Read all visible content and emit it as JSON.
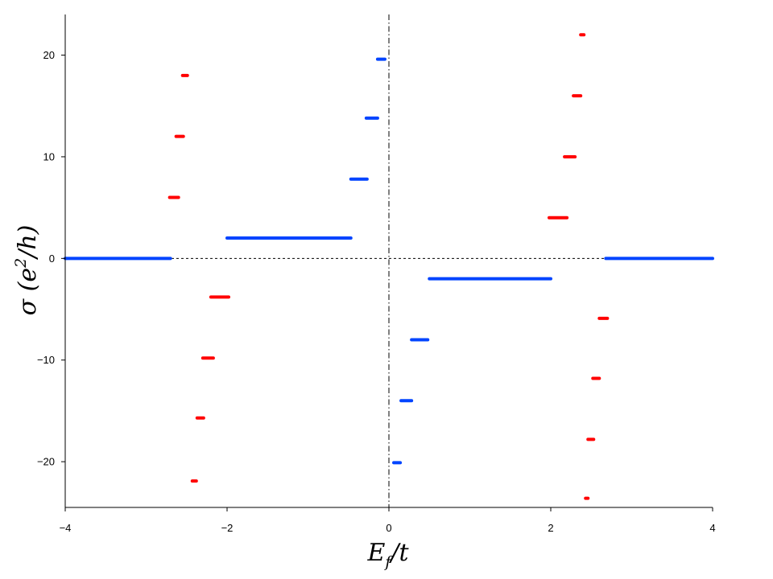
{
  "chart_data": {
    "type": "scatter",
    "title": "",
    "xlabel": "E_f / t",
    "ylabel": "σ (e² / h)",
    "xlim": [
      -4,
      4
    ],
    "ylim": [
      -24.5,
      24
    ],
    "xticks": [
      -4,
      -2,
      0,
      2,
      4
    ],
    "yticks": [
      -20,
      -10,
      0,
      10,
      20
    ],
    "tick_labels": {
      "x": [
        "−4",
        "−2",
        "0",
        "2",
        "4"
      ],
      "y": [
        "−20",
        "−10",
        "0",
        "10",
        "20"
      ]
    },
    "reference_lines": [
      {
        "orientation": "horizontal",
        "value": 0,
        "style": "dashed"
      },
      {
        "orientation": "vertical",
        "value": 0,
        "style": "dash-dot"
      }
    ],
    "colors": {
      "blue": "#0044ff",
      "red": "#ff0000",
      "axis": "#000000"
    },
    "series": [
      {
        "color": "blue",
        "segments": [
          {
            "x": [
              -4.0,
              -2.7
            ],
            "y": 0
          },
          {
            "x": [
              -2.0,
              -0.47
            ],
            "y": 2
          },
          {
            "x": [
              -0.47,
              -0.27
            ],
            "y": 7.8
          },
          {
            "x": [
              -0.28,
              -0.14
            ],
            "y": 13.8
          },
          {
            "x": [
              -0.14,
              -0.05
            ],
            "y": 19.6
          },
          {
            "x": [
              0.5,
              2.0
            ],
            "y": -2
          },
          {
            "x": [
              0.28,
              0.48
            ],
            "y": -8
          },
          {
            "x": [
              0.15,
              0.28
            ],
            "y": -14
          },
          {
            "x": [
              0.06,
              0.14
            ],
            "y": -20.1
          },
          {
            "x": [
              2.68,
              4.0
            ],
            "y": 0
          }
        ]
      },
      {
        "color": "red",
        "segments": [
          {
            "x": [
              -2.55,
              -2.49
            ],
            "y": 18
          },
          {
            "x": [
              -2.63,
              -2.54
            ],
            "y": 12
          },
          {
            "x": [
              -2.71,
              -2.6
            ],
            "y": 6
          },
          {
            "x": [
              -2.2,
              -1.98
            ],
            "y": -3.8
          },
          {
            "x": [
              -2.3,
              -2.17
            ],
            "y": -9.8
          },
          {
            "x": [
              -2.37,
              -2.29
            ],
            "y": -15.7
          },
          {
            "x": [
              -2.43,
              -2.38
            ],
            "y": -21.9
          },
          {
            "x": [
              2.37,
              2.41
            ],
            "y": 22
          },
          {
            "x": [
              2.28,
              2.37
            ],
            "y": 16
          },
          {
            "x": [
              2.17,
              2.3
            ],
            "y": 10
          },
          {
            "x": [
              1.98,
              2.2
            ],
            "y": 4
          },
          {
            "x": [
              2.6,
              2.7
            ],
            "y": -5.9
          },
          {
            "x": [
              2.52,
              2.6
            ],
            "y": -11.8
          },
          {
            "x": [
              2.46,
              2.53
            ],
            "y": -17.8
          },
          {
            "x": [
              2.43,
              2.46
            ],
            "y": -23.6
          }
        ]
      }
    ]
  }
}
